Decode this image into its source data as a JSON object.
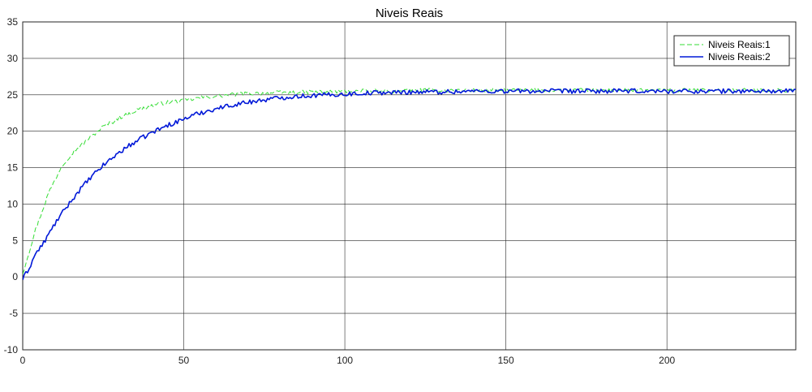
{
  "chart_data": {
    "type": "line",
    "title": "Niveis Reais",
    "xlabel": "",
    "ylabel": "",
    "xlim": [
      0,
      240
    ],
    "ylim": [
      -10,
      35
    ],
    "x_ticks": [
      0,
      50,
      100,
      150,
      200
    ],
    "y_ticks": [
      -10,
      -5,
      0,
      5,
      10,
      15,
      20,
      25,
      30,
      35
    ],
    "grid": true,
    "legend_position": "top-right",
    "series": [
      {
        "name": "Niveis Reais:1",
        "color": "#33dd33",
        "style": "dashed",
        "x": [
          0,
          2,
          4,
          6,
          8,
          10,
          12,
          14,
          16,
          18,
          20,
          22,
          24,
          26,
          28,
          30,
          32,
          34,
          36,
          38,
          40,
          42,
          44,
          46,
          48,
          50,
          55,
          60,
          65,
          70,
          75,
          80,
          85,
          90,
          95,
          100,
          105,
          110,
          115,
          120,
          130,
          140,
          150,
          160,
          170,
          180,
          190,
          200,
          210,
          220,
          230,
          240
        ],
        "y": [
          0.5,
          3.5,
          6.5,
          9.0,
          11.5,
          13.3,
          15.2,
          16.3,
          17.3,
          18.0,
          18.8,
          19.5,
          20.3,
          20.9,
          21.3,
          21.9,
          22.2,
          22.6,
          23.0,
          23.2,
          23.5,
          23.7,
          23.9,
          24.0,
          24.1,
          24.2,
          24.6,
          24.8,
          25.0,
          25.2,
          25.2,
          25.3,
          25.3,
          25.4,
          25.4,
          25.5,
          25.5,
          25.5,
          25.5,
          25.6,
          25.6,
          25.6,
          25.6,
          25.6,
          25.6,
          25.6,
          25.6,
          25.6,
          25.6,
          25.6,
          25.6,
          25.6
        ]
      },
      {
        "name": "Niveis Reais:2",
        "color": "#0018d8",
        "style": "solid",
        "x": [
          0,
          2,
          4,
          6,
          8,
          10,
          12,
          14,
          16,
          18,
          20,
          22,
          24,
          26,
          28,
          30,
          32,
          34,
          36,
          38,
          40,
          42,
          44,
          46,
          48,
          50,
          55,
          60,
          65,
          70,
          75,
          80,
          85,
          90,
          95,
          100,
          105,
          110,
          115,
          120,
          130,
          140,
          150,
          160,
          170,
          180,
          190,
          200,
          210,
          220,
          230,
          240
        ],
        "y": [
          -0.3,
          1.2,
          3.2,
          4.3,
          5.8,
          7.3,
          8.6,
          9.8,
          11.0,
          12.1,
          13.1,
          14.0,
          14.9,
          15.7,
          16.4,
          17.1,
          17.7,
          18.3,
          18.8,
          19.3,
          19.8,
          20.2,
          20.6,
          21.0,
          21.3,
          21.7,
          22.5,
          23.1,
          23.6,
          24.0,
          24.3,
          24.6,
          24.8,
          24.9,
          25.0,
          25.1,
          25.2,
          25.3,
          25.3,
          25.4,
          25.4,
          25.5,
          25.5,
          25.5,
          25.5,
          25.5,
          25.5,
          25.5,
          25.5,
          25.5,
          25.5,
          25.5
        ]
      }
    ]
  }
}
